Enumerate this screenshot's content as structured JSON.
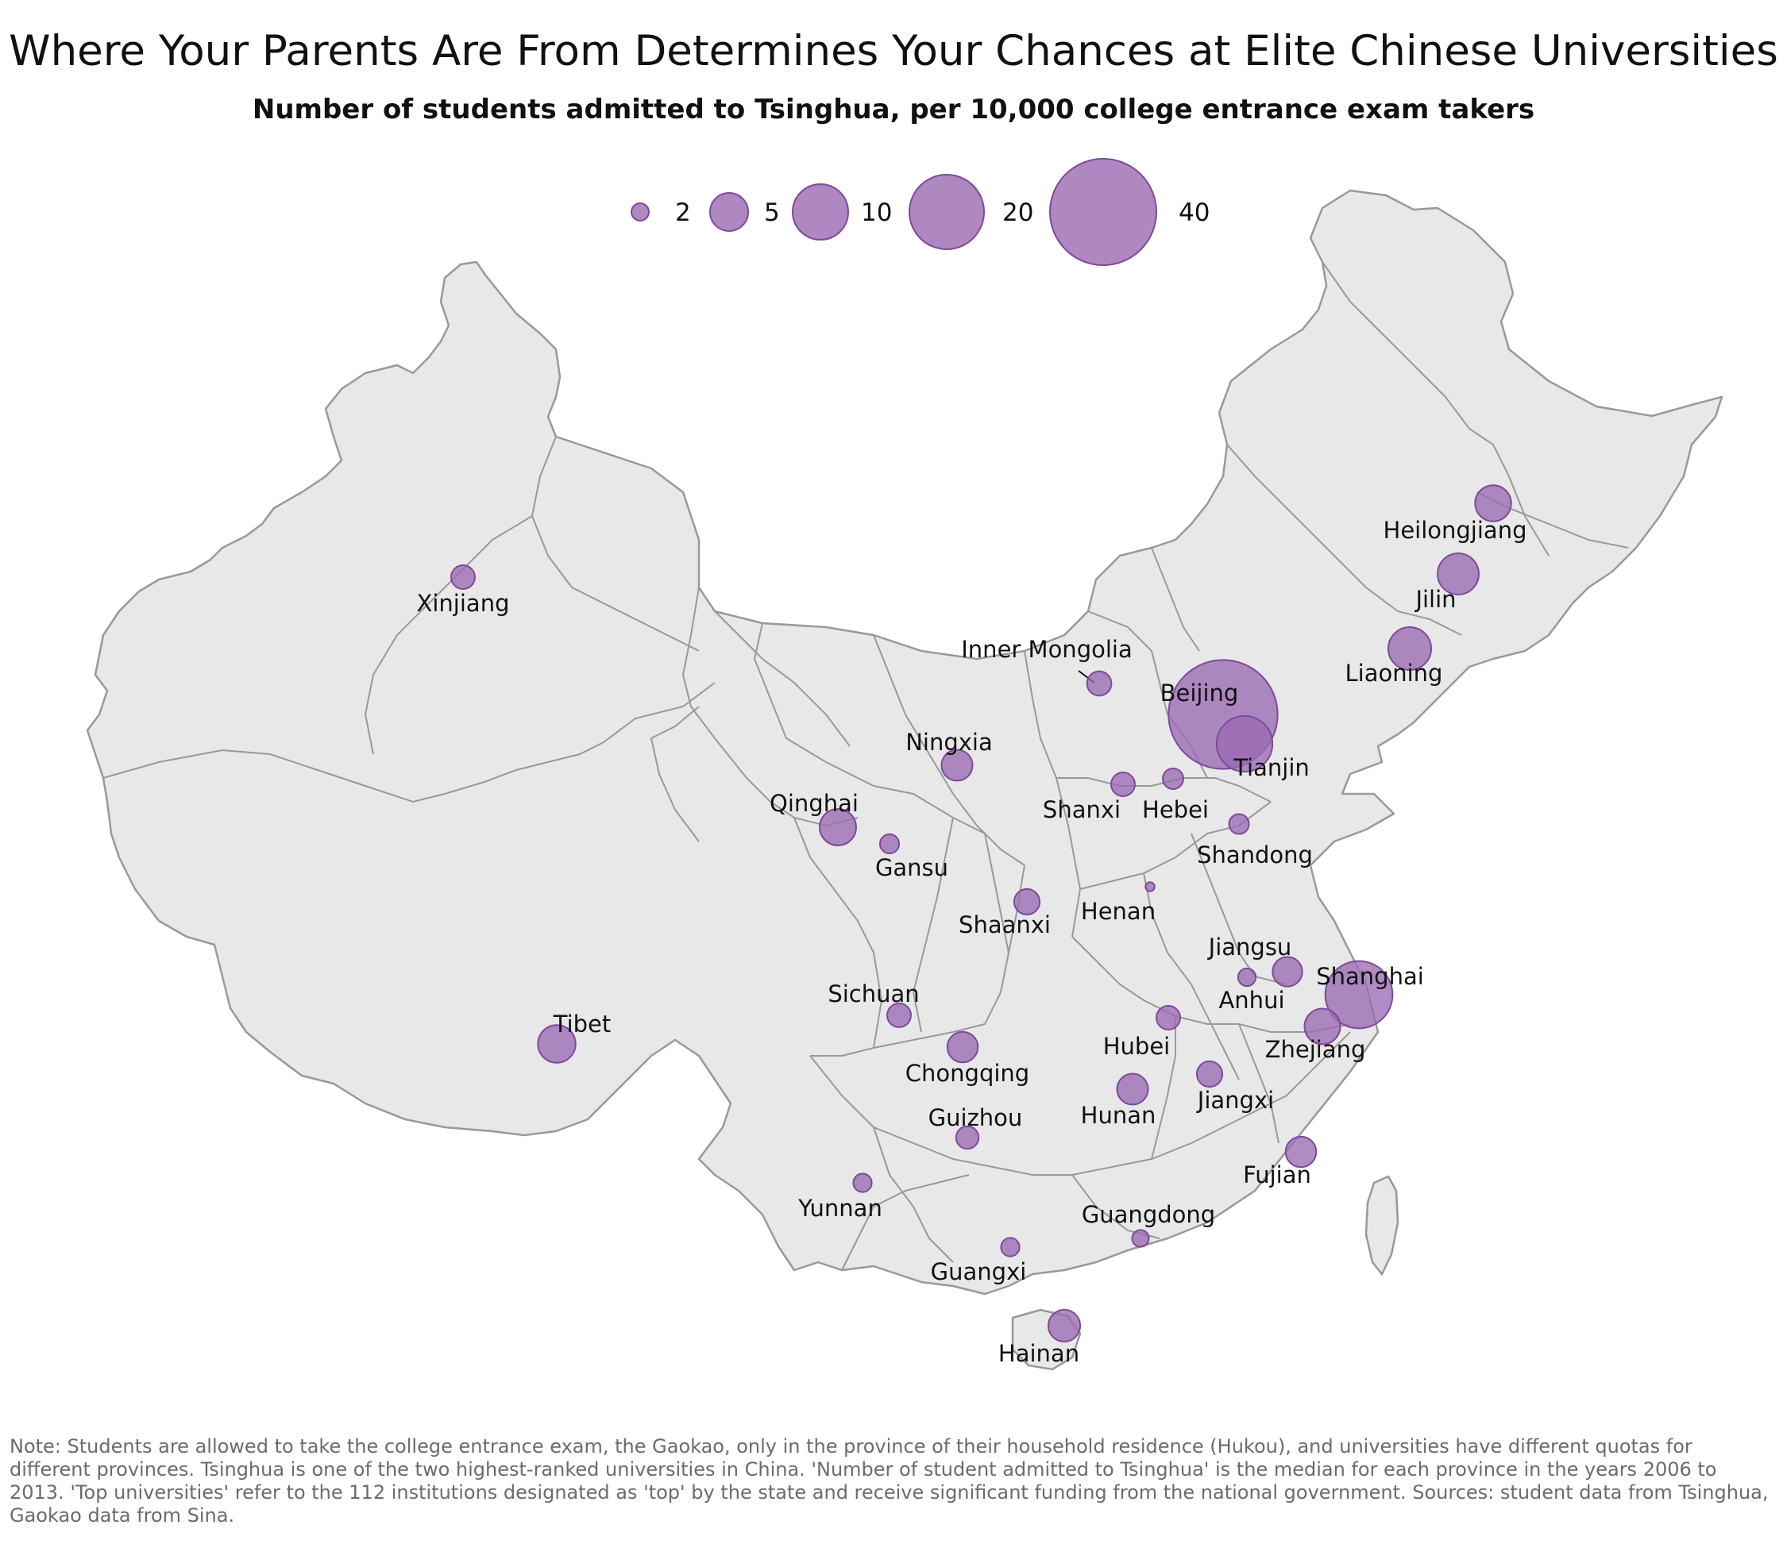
{
  "title": "Where Your Parents Are From Determines Your Chances at Elite Chinese Universities",
  "subtitle": "Number of students admitted to Tsinghua, per 10,000 college entrance exam takers",
  "note": "Note: Students are allowed to take the college entrance exam, the Gaokao, only in the province of their household residence (Hukou), and universities have different quotas for different provinces. Tsinghua is one of the two highest-ranked universities in China. 'Number of student admitted to Tsinghua' is the median for each province in the years 2006 to 2013. 'Top universities' refer to the 112 institutions designated as 'top' by the state and receive significant funding from the national government. Sources: student data from Tsinghua, Gaokao data from Sina.",
  "colors": {
    "bubble_fill": "#9b6ab3",
    "bubble_stroke": "#7d4a9b",
    "land": "#e8e8e8",
    "border": "#999999"
  },
  "legend": {
    "sizes": [
      {
        "value": 2,
        "label": "2"
      },
      {
        "value": 5,
        "label": "5"
      },
      {
        "value": 10,
        "label": "10"
      },
      {
        "value": 20,
        "label": "20"
      },
      {
        "value": 40,
        "label": "40"
      }
    ]
  },
  "provinces": [
    {
      "name": "Xinjiang",
      "label": "Xinjiang",
      "value": 2.0
    },
    {
      "name": "Tibet",
      "label": "Tibet",
      "value": 5.0
    },
    {
      "name": "Qinghai",
      "label": "Qinghai",
      "value": 4.7
    },
    {
      "name": "Gansu",
      "label": "Gansu",
      "value": 1.3
    },
    {
      "name": "Ningxia",
      "label": "Ningxia",
      "value": 3.4
    },
    {
      "name": "Inner Mongolia",
      "label": "Inner Mongolia",
      "value": 2.1
    },
    {
      "name": "Heilongjiang",
      "label": "Heilongjiang",
      "value": 4.6
    },
    {
      "name": "Jilin",
      "label": "Jilin",
      "value": 6.0
    },
    {
      "name": "Liaoning",
      "label": "Liaoning",
      "value": 6.5
    },
    {
      "name": "Beijing",
      "label": "Beijing",
      "value": 42
    },
    {
      "name": "Tianjin",
      "label": "Tianjin",
      "value": 11
    },
    {
      "name": "Hebei",
      "label": "Hebei",
      "value": 1.5
    },
    {
      "name": "Shanxi",
      "label": "Shanxi",
      "value": 2.0
    },
    {
      "name": "Shandong",
      "label": "Shandong",
      "value": 1.4
    },
    {
      "name": "Henan",
      "label": "Henan",
      "value": 0.3
    },
    {
      "name": "Shaanxi",
      "label": "Shaanxi",
      "value": 2.3
    },
    {
      "name": "Sichuan",
      "label": "Sichuan",
      "value": 2.0
    },
    {
      "name": "Chongqing",
      "label": "Chongqing",
      "value": 3.3
    },
    {
      "name": "Hubei",
      "label": "Hubei",
      "value": 2.0
    },
    {
      "name": "Anhui",
      "label": "Anhui",
      "value": 1.1
    },
    {
      "name": "Jiangsu",
      "label": "Jiangsu",
      "value": 3.1
    },
    {
      "name": "Shanghai",
      "label": "Shanghai",
      "value": 16
    },
    {
      "name": "Zhejiang",
      "label": "Zhejiang",
      "value": 4.5
    },
    {
      "name": "Jiangxi",
      "label": "Jiangxi",
      "value": 2.3
    },
    {
      "name": "Hunan",
      "label": "Hunan",
      "value": 3.4
    },
    {
      "name": "Fujian",
      "label": "Fujian",
      "value": 3.3
    },
    {
      "name": "Guizhou",
      "label": "Guizhou",
      "value": 1.8
    },
    {
      "name": "Yunnan",
      "label": "Yunnan",
      "value": 1.2
    },
    {
      "name": "Guangxi",
      "label": "Guangxi",
      "value": 1.2
    },
    {
      "name": "Guangdong",
      "label": "Guangdong",
      "value": 1.0
    },
    {
      "name": "Hainan",
      "label": "Hainan",
      "value": 3.6
    }
  ]
}
